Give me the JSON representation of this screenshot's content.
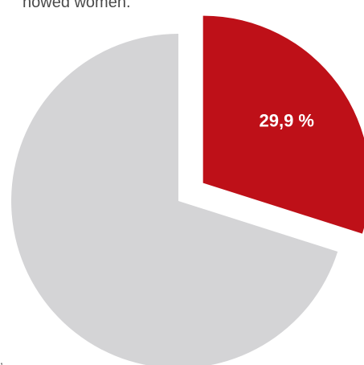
{
  "header": {
    "cut_text": "nowed women."
  },
  "footer": {
    "cut_mark": ","
  },
  "chart_data": {
    "type": "pie",
    "title": "",
    "slices": [
      {
        "label": "29,9 %",
        "value": 29.9,
        "color": "#be1018",
        "exploded": true
      },
      {
        "label": "",
        "value": 70.1,
        "color": "#d4d4d6",
        "exploded": false
      }
    ],
    "start_angle_deg": 0,
    "direction": "clockwise"
  }
}
